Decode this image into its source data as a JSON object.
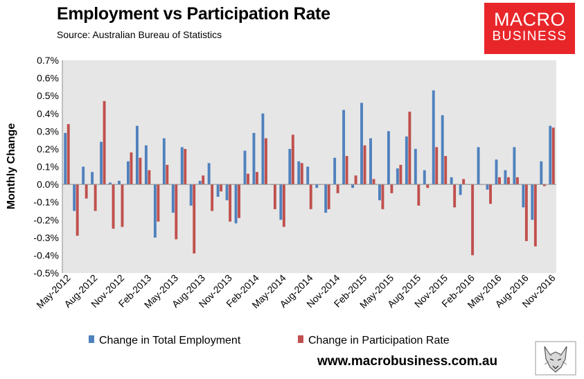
{
  "header": {
    "title": "Employment vs Participation Rate",
    "source": "Source: Australian Bureau of Statistics"
  },
  "logo": {
    "line1": "MACRO",
    "line2": "BUSINESS"
  },
  "footer": {
    "url": "www.macrobusiness.com.au"
  },
  "colors": {
    "employment": "#4f81bd",
    "participation": "#c0504d",
    "plot_bg": "#e6e6e6",
    "logo_bg": "#e8262a"
  },
  "chart_data": {
    "type": "bar",
    "title": "Employment vs Participation Rate",
    "xlabel": "",
    "ylabel": "Monthly Change",
    "ylim": [
      -0.5,
      0.7
    ],
    "yticks": [
      0.7,
      0.6,
      0.5,
      0.4,
      0.3,
      0.2,
      0.1,
      0.0,
      -0.1,
      -0.2,
      -0.3,
      -0.4,
      -0.5
    ],
    "ytick_labels": [
      "0.7%",
      "0.6%",
      "0.5%",
      "0.4%",
      "0.3%",
      "0.2%",
      "0.1%",
      "0.0%",
      "-0.1%",
      "-0.2%",
      "-0.3%",
      "-0.4%",
      "-0.5%"
    ],
    "xtick_labels": [
      "May-2012",
      "Aug-2012",
      "Nov-2012",
      "Feb-2013",
      "May-2013",
      "Aug-2013",
      "Nov-2013",
      "Feb-2014",
      "May-2014",
      "Aug-2014",
      "Nov-2014",
      "Feb-2015",
      "May-2015",
      "Aug-2015",
      "Nov-2015",
      "Feb-2016",
      "May-2016",
      "Aug-2016",
      "Nov-2016"
    ],
    "categories": [
      "May-2012",
      "Jun-2012",
      "Jul-2012",
      "Aug-2012",
      "Sep-2012",
      "Oct-2012",
      "Nov-2012",
      "Dec-2012",
      "Jan-2013",
      "Feb-2013",
      "Mar-2013",
      "Apr-2013",
      "May-2013",
      "Jun-2013",
      "Jul-2013",
      "Aug-2013",
      "Sep-2013",
      "Oct-2013",
      "Nov-2013",
      "Dec-2013",
      "Jan-2014",
      "Feb-2014",
      "Mar-2014",
      "Apr-2014",
      "May-2014",
      "Jun-2014",
      "Jul-2014",
      "Aug-2014",
      "Sep-2014",
      "Oct-2014",
      "Nov-2014",
      "Dec-2014",
      "Jan-2015",
      "Feb-2015",
      "Mar-2015",
      "Apr-2015",
      "May-2015",
      "Jun-2015",
      "Jul-2015",
      "Aug-2015",
      "Sep-2015",
      "Oct-2015",
      "Nov-2015",
      "Dec-2015",
      "Jan-2016",
      "Feb-2016",
      "Mar-2016",
      "Apr-2016",
      "May-2016",
      "Jun-2016",
      "Jul-2016",
      "Aug-2016",
      "Sep-2016",
      "Oct-2016",
      "Nov-2016"
    ],
    "series": [
      {
        "name": "Change in Total Employment",
        "values": [
          0.29,
          -0.15,
          0.1,
          0.07,
          0.24,
          0.01,
          0.02,
          0.13,
          0.33,
          0.22,
          -0.3,
          0.26,
          -0.16,
          0.21,
          -0.12,
          0.02,
          0.12,
          -0.07,
          -0.09,
          -0.22,
          0.19,
          0.29,
          0.4,
          0.0,
          -0.2,
          0.2,
          0.13,
          0.1,
          -0.02,
          -0.16,
          0.15,
          0.42,
          -0.02,
          0.46,
          0.26,
          -0.09,
          0.3,
          0.09,
          0.27,
          0.2,
          0.08,
          0.53,
          0.39,
          0.04,
          -0.06,
          0.0,
          0.21,
          -0.03,
          0.14,
          0.08,
          0.21,
          -0.13,
          -0.2,
          0.13,
          0.33
        ]
      },
      {
        "name": "Change in Participation Rate",
        "values": [
          0.34,
          -0.29,
          -0.08,
          -0.15,
          0.47,
          -0.25,
          -0.24,
          0.18,
          0.15,
          0.08,
          -0.21,
          0.11,
          -0.31,
          0.2,
          -0.39,
          0.05,
          -0.15,
          -0.04,
          -0.21,
          -0.19,
          0.06,
          0.07,
          0.26,
          -0.14,
          -0.24,
          0.28,
          0.12,
          -0.14,
          0.0,
          -0.14,
          -0.05,
          0.16,
          0.05,
          0.22,
          0.03,
          -0.14,
          -0.05,
          0.11,
          0.41,
          -0.12,
          -0.02,
          0.21,
          0.16,
          -0.13,
          0.03,
          -0.4,
          0.0,
          -0.11,
          0.04,
          0.04,
          0.04,
          -0.32,
          -0.35,
          -0.01,
          0.32
        ]
      }
    ],
    "legend": [
      "Change in Total Employment",
      "Change in Participation Rate"
    ],
    "legend_position": "bottom",
    "grid": false
  }
}
